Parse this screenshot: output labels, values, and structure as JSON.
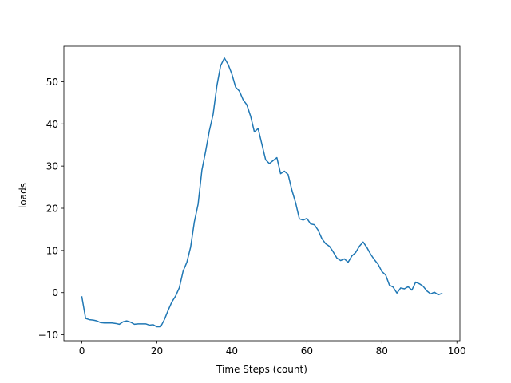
{
  "chart_data": {
    "type": "line",
    "title": "",
    "xlabel": "Time Steps (count)",
    "ylabel": "loads",
    "xlim": [
      -4.8,
      100.8
    ],
    "ylim": [
      -11.4,
      58.4
    ],
    "xticks": [
      0,
      20,
      40,
      60,
      80,
      100
    ],
    "yticks": [
      -10,
      0,
      10,
      20,
      30,
      40,
      50
    ],
    "grid": false,
    "legend": "none",
    "series": [
      {
        "color": "#1f77b4",
        "x": [
          0,
          1,
          2,
          3,
          4,
          5,
          6,
          7,
          8,
          9,
          10,
          11,
          12,
          13,
          14,
          15,
          16,
          17,
          18,
          19,
          20,
          21,
          22,
          23,
          24,
          25,
          26,
          27,
          28,
          29,
          30,
          31,
          32,
          33,
          34,
          35,
          36,
          37,
          38,
          39,
          40,
          41,
          42,
          43,
          44,
          45,
          46,
          47,
          48,
          49,
          50,
          51,
          52,
          53,
          54,
          55,
          56,
          57,
          58,
          59,
          60,
          61,
          62,
          63,
          64,
          65,
          66,
          67,
          68,
          69,
          70,
          71,
          72,
          73,
          74,
          75,
          76,
          77,
          78,
          79,
          80,
          81,
          82,
          83,
          84,
          85,
          86,
          87,
          88,
          89,
          90,
          91,
          92,
          93,
          94,
          95,
          96
        ],
        "y": [
          -1.0,
          -6.1,
          -6.4,
          -6.5,
          -6.7,
          -7.1,
          -7.2,
          -7.2,
          -7.2,
          -7.3,
          -7.5,
          -6.9,
          -6.7,
          -7.0,
          -7.5,
          -7.4,
          -7.4,
          -7.4,
          -7.7,
          -7.6,
          -8.1,
          -8.1,
          -6.4,
          -4.2,
          -2.2,
          -0.8,
          1.2,
          5.1,
          7.2,
          10.8,
          16.8,
          21.0,
          29.0,
          33.5,
          38.4,
          42.3,
          49.0,
          53.8,
          55.6,
          54.1,
          51.8,
          48.7,
          47.8,
          45.7,
          44.5,
          41.8,
          38.1,
          38.9,
          35.2,
          31.5,
          30.6,
          31.3,
          32.0,
          28.2,
          28.8,
          28.0,
          24.3,
          21.3,
          17.5,
          17.2,
          17.6,
          16.3,
          16.1,
          14.8,
          12.8,
          11.6,
          11.0,
          9.7,
          8.2,
          7.6,
          8.0,
          7.2,
          8.7,
          9.5,
          11.0,
          12.0,
          10.7,
          9.1,
          7.8,
          6.7,
          5.0,
          4.2,
          1.8,
          1.3,
          -0.1,
          1.1,
          0.9,
          1.4,
          0.6,
          2.5,
          2.1,
          1.5,
          0.4,
          -0.3,
          0.1,
          -0.5,
          -0.2
        ]
      }
    ]
  }
}
